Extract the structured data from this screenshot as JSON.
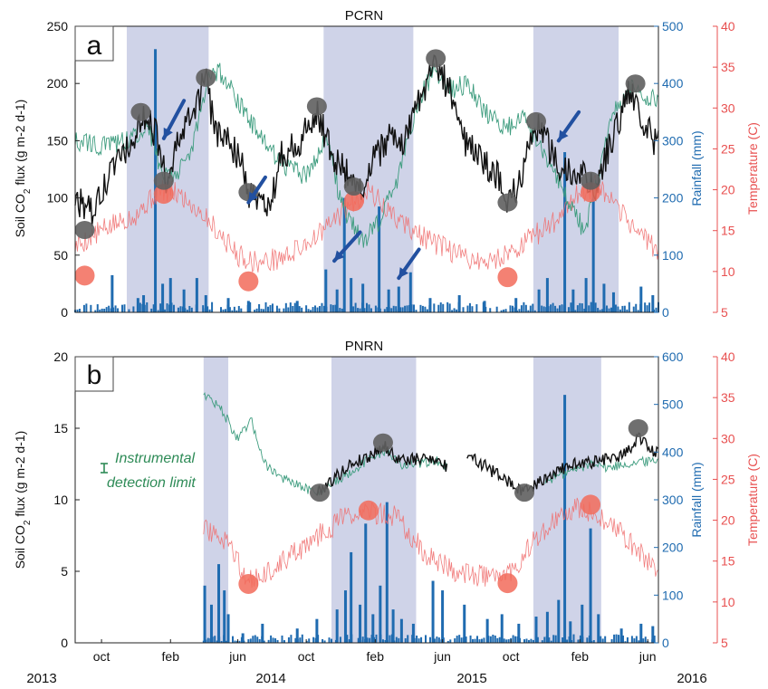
{
  "figure": {
    "year_labels": [
      "2013",
      "2014",
      "2015",
      "2016"
    ],
    "month_labels": [
      "oct",
      "feb",
      "jun",
      "oct",
      "feb",
      "jun",
      "oct",
      "feb",
      "jun"
    ]
  },
  "colors": {
    "flux": "#111111",
    "flux_markers": "#5f5f5f",
    "soil_moisture_line": "#3d9c7e",
    "rainfall": "#1f6bb0",
    "temperature": "#f07070",
    "temperature_markers": "#f26b5b",
    "wet_season_band": "#c7cbe4",
    "arrows": "#2250a0",
    "annotation_text": "#2e8b57"
  },
  "chart_data": [
    {
      "panel_letter": "a",
      "title": "PCRN",
      "type": "line",
      "ylabel": "Soil CO2 flux (g m-2 d-1)",
      "ylabel_main": "Soil CO",
      "ylabel_sub": "2",
      "ylabel_rest": " flux (g m-2 d-1)",
      "y2label": "Rainfall (mm)",
      "y3label": "Temperature (C)",
      "ylim": [
        0,
        250
      ],
      "y2lim": [
        0,
        500
      ],
      "y3lim": [
        5,
        40
      ],
      "yticks": [
        0,
        50,
        100,
        150,
        200,
        250
      ],
      "y2ticks": [
        0,
        100,
        200,
        300,
        400,
        500
      ],
      "y3ticks": [
        5,
        10,
        15,
        20,
        25,
        30,
        35,
        40
      ],
      "x_start": "2013-08-15",
      "x_end": "2016-06-20",
      "wet_season_bands": [
        [
          "2013-11-15",
          "2014-04-10"
        ],
        [
          "2014-11-01",
          "2015-04-10"
        ],
        [
          "2015-11-10",
          "2016-04-10"
        ]
      ],
      "flux_anchors": [
        [
          "2013-08-15",
          100
        ],
        [
          "2013-09-15",
          85
        ],
        [
          "2013-10-20",
          125
        ],
        [
          "2013-12-10",
          160
        ],
        [
          "2013-12-20",
          175
        ],
        [
          "2014-01-10",
          150
        ],
        [
          "2014-01-25",
          115
        ],
        [
          "2014-02-20",
          155
        ],
        [
          "2014-03-10",
          170
        ],
        [
          "2014-04-05",
          205
        ],
        [
          "2014-04-20",
          160
        ],
        [
          "2014-05-20",
          145
        ],
        [
          "2014-06-10",
          130
        ],
        [
          "2014-06-20",
          105
        ],
        [
          "2014-07-10",
          95
        ],
        [
          "2014-08-01",
          100
        ],
        [
          "2014-08-15",
          135
        ],
        [
          "2014-09-20",
          150
        ],
        [
          "2014-10-20",
          175
        ],
        [
          "2014-11-15",
          140
        ],
        [
          "2014-12-20",
          115
        ],
        [
          "2015-01-10",
          110
        ],
        [
          "2015-02-01",
          135
        ],
        [
          "2015-03-01",
          155
        ],
        [
          "2015-03-20",
          145
        ],
        [
          "2015-04-20",
          185
        ],
        [
          "2015-05-15",
          215
        ],
        [
          "2015-06-10",
          200
        ],
        [
          "2015-07-10",
          150
        ],
        [
          "2015-08-10",
          130
        ],
        [
          "2015-09-01",
          125
        ],
        [
          "2015-09-25",
          100
        ],
        [
          "2015-10-15",
          110
        ],
        [
          "2015-11-01",
          150
        ],
        [
          "2015-11-20",
          165
        ],
        [
          "2015-12-20",
          130
        ],
        [
          "2016-01-20",
          125
        ],
        [
          "2016-02-15",
          115
        ],
        [
          "2016-03-01",
          110
        ],
        [
          "2016-03-20",
          140
        ],
        [
          "2016-04-10",
          165
        ],
        [
          "2016-05-01",
          195
        ],
        [
          "2016-05-20",
          170
        ],
        [
          "2016-06-20",
          145
        ]
      ],
      "soil_moisture_anchors": [
        [
          "2013-08-15",
          150
        ],
        [
          "2013-10-01",
          145
        ],
        [
          "2013-11-20",
          150
        ],
        [
          "2013-12-20",
          165
        ],
        [
          "2014-01-15",
          125
        ],
        [
          "2014-02-15",
          120
        ],
        [
          "2014-03-15",
          150
        ],
        [
          "2014-04-10",
          205
        ],
        [
          "2014-05-01",
          210
        ],
        [
          "2014-06-01",
          185
        ],
        [
          "2014-07-01",
          160
        ],
        [
          "2014-08-01",
          140
        ],
        [
          "2014-09-01",
          125
        ],
        [
          "2014-10-01",
          120
        ],
        [
          "2014-11-10",
          155
        ],
        [
          "2014-12-01",
          95
        ],
        [
          "2015-01-10",
          60
        ],
        [
          "2015-02-10",
          80
        ],
        [
          "2015-03-15",
          120
        ],
        [
          "2015-04-15",
          180
        ],
        [
          "2015-05-15",
          210
        ],
        [
          "2015-06-15",
          195
        ],
        [
          "2015-07-15",
          200
        ],
        [
          "2015-08-15",
          175
        ],
        [
          "2015-09-20",
          160
        ],
        [
          "2015-10-20",
          170
        ],
        [
          "2015-11-20",
          150
        ],
        [
          "2015-12-20",
          120
        ],
        [
          "2016-01-20",
          90
        ],
        [
          "2016-02-10",
          70
        ],
        [
          "2016-03-01",
          110
        ],
        [
          "2016-04-01",
          175
        ],
        [
          "2016-05-01",
          195
        ],
        [
          "2016-06-20",
          185
        ]
      ],
      "temperature_anchors": [
        [
          "2013-08-15",
          13
        ],
        [
          "2013-10-01",
          15
        ],
        [
          "2013-12-01",
          17
        ],
        [
          "2014-01-15",
          20
        ],
        [
          "2014-02-15",
          19.5
        ],
        [
          "2014-04-01",
          17
        ],
        [
          "2014-06-01",
          12
        ],
        [
          "2014-07-10",
          11
        ],
        [
          "2014-09-01",
          12
        ],
        [
          "2014-11-01",
          15
        ],
        [
          "2014-12-15",
          18
        ],
        [
          "2015-01-20",
          20
        ],
        [
          "2015-03-01",
          17
        ],
        [
          "2015-05-01",
          14
        ],
        [
          "2015-07-01",
          12
        ],
        [
          "2015-08-20",
          11
        ],
        [
          "2015-10-15",
          13
        ],
        [
          "2015-12-15",
          16
        ],
        [
          "2016-01-20",
          19
        ],
        [
          "2016-03-01",
          20.5
        ],
        [
          "2016-04-15",
          17
        ],
        [
          "2016-06-20",
          12.5
        ]
      ],
      "rain_events": [
        [
          "2013-10-20",
          65
        ],
        [
          "2013-12-05",
          25
        ],
        [
          "2013-12-15",
          30
        ],
        [
          "2014-01-05",
          460
        ],
        [
          "2014-01-18",
          50
        ],
        [
          "2014-02-01",
          60
        ],
        [
          "2014-02-25",
          40
        ],
        [
          "2014-03-20",
          60
        ],
        [
          "2014-04-05",
          30
        ],
        [
          "2014-05-15",
          25
        ],
        [
          "2014-06-20",
          20
        ],
        [
          "2014-09-15",
          20
        ],
        [
          "2014-11-05",
          75
        ],
        [
          "2014-11-25",
          40
        ],
        [
          "2014-12-08",
          200
        ],
        [
          "2014-12-20",
          60
        ],
        [
          "2015-01-10",
          50
        ],
        [
          "2015-02-08",
          185
        ],
        [
          "2015-02-25",
          40
        ],
        [
          "2015-03-15",
          45
        ],
        [
          "2015-04-05",
          70
        ],
        [
          "2015-05-10",
          25
        ],
        [
          "2015-07-01",
          30
        ],
        [
          "2015-08-15",
          20
        ],
        [
          "2015-10-10",
          25
        ],
        [
          "2015-11-20",
          40
        ],
        [
          "2015-12-05",
          60
        ],
        [
          "2016-01-05",
          280
        ],
        [
          "2016-01-20",
          40
        ],
        [
          "2016-02-12",
          60
        ],
        [
          "2016-02-25",
          220
        ],
        [
          "2016-03-15",
          50
        ],
        [
          "2016-04-01",
          35
        ],
        [
          "2016-05-20",
          45
        ],
        [
          "2016-06-10",
          30
        ]
      ],
      "flux_markers": [
        [
          "2013-09-01",
          72
        ],
        [
          "2013-12-10",
          175
        ],
        [
          "2014-01-20",
          115
        ],
        [
          "2014-04-05",
          205
        ],
        [
          "2014-06-20",
          105
        ],
        [
          "2014-10-20",
          180
        ],
        [
          "2014-12-25",
          110
        ],
        [
          "2015-05-20",
          222
        ],
        [
          "2015-09-25",
          96
        ],
        [
          "2015-11-15",
          167
        ],
        [
          "2016-02-20",
          115
        ],
        [
          "2016-05-10",
          200
        ]
      ],
      "temperature_markers": [
        [
          "2013-09-01",
          9.5
        ],
        [
          "2014-01-20",
          19.5
        ],
        [
          "2014-06-20",
          8.8
        ],
        [
          "2014-12-25",
          18.6
        ],
        [
          "2015-09-25",
          9.3
        ],
        [
          "2016-02-20",
          19.7
        ]
      ],
      "arrows": [
        [
          [
            "2014-01-20",
            152
          ],
          [
            "2014-02-25",
            185
          ]
        ],
        [
          [
            "2014-06-20",
            96
          ],
          [
            "2014-07-20",
            118
          ]
        ],
        [
          [
            "2014-11-20",
            45
          ],
          [
            "2015-01-05",
            70
          ]
        ],
        [
          [
            "2015-03-15",
            30
          ],
          [
            "2015-04-20",
            55
          ]
        ],
        [
          [
            "2015-12-25",
            150
          ],
          [
            "2016-01-30",
            175
          ]
        ]
      ]
    },
    {
      "panel_letter": "b",
      "title": "PNRN",
      "type": "line",
      "ylabel": "Soil CO2 flux (g m-2 d-1)",
      "ylabel_main": "Soil CO",
      "ylabel_sub": "2",
      "ylabel_rest": " flux (g m-2 d-1)",
      "y2label": "Rainfall (mm)",
      "y3label": "Temperature (C)",
      "ylim": [
        0,
        20
      ],
      "y2lim": [
        0,
        600
      ],
      "y3lim": [
        5,
        40
      ],
      "yticks": [
        0,
        5,
        10,
        15,
        20
      ],
      "y2ticks": [
        0,
        100,
        200,
        300,
        400,
        500,
        600
      ],
      "y3ticks": [
        5,
        10,
        15,
        20,
        25,
        30,
        35,
        40
      ],
      "x_start": "2013-08-15",
      "x_end": "2016-06-20",
      "wet_season_bands": [
        [
          "2014-04-01",
          "2014-05-15"
        ],
        [
          "2014-11-15",
          "2015-04-15"
        ],
        [
          "2015-11-10",
          "2016-03-10"
        ]
      ],
      "flux_anchors": [
        [
          "2014-10-20",
          10.5
        ],
        [
          "2014-11-20",
          11.5
        ],
        [
          "2014-12-20",
          12.5
        ],
        [
          "2015-01-20",
          13
        ],
        [
          "2015-02-15",
          13.8
        ],
        [
          "2015-03-15",
          12.8
        ],
        [
          "2015-04-15",
          12.8
        ],
        [
          "2015-05-15",
          13
        ],
        [
          "2015-06-10",
          12.2
        ]
      ],
      "flux_anchors_2": [
        [
          "2015-07-15",
          13.1
        ],
        [
          "2015-08-15",
          12.4
        ],
        [
          "2015-09-15",
          11.5
        ],
        [
          "2015-10-25",
          10.5
        ],
        [
          "2015-12-01",
          11.5
        ],
        [
          "2016-01-15",
          12.5
        ],
        [
          "2016-02-15",
          12.6
        ],
        [
          "2016-03-15",
          12.8
        ],
        [
          "2016-04-15",
          13
        ],
        [
          "2016-05-15",
          14.3
        ],
        [
          "2016-06-20",
          13.2
        ]
      ],
      "soil_moisture_anchors": [
        [
          "2014-04-01",
          17.5
        ],
        [
          "2014-05-05",
          16.2
        ],
        [
          "2014-06-01",
          14.2
        ],
        [
          "2014-06-25",
          15.5
        ],
        [
          "2014-07-20",
          12.5
        ],
        [
          "2014-08-20",
          11.5
        ],
        [
          "2014-09-25",
          10.8
        ],
        [
          "2014-10-25",
          10.6
        ],
        [
          "2014-12-01",
          11.5
        ],
        [
          "2015-01-20",
          12.8
        ],
        [
          "2015-02-20",
          13.5
        ],
        [
          "2015-03-20",
          12.4
        ],
        [
          "2015-04-20",
          12.5
        ],
        [
          "2015-05-20",
          12.8
        ],
        [
          "2015-06-10",
          12.2
        ]
      ],
      "soil_moisture_anchors_2": [
        [
          "2015-12-01",
          11.3
        ],
        [
          "2016-01-01",
          11.8
        ],
        [
          "2016-02-01",
          12.2
        ],
        [
          "2016-03-01",
          12.7
        ],
        [
          "2016-03-20",
          12.2
        ],
        [
          "2016-04-20",
          12.5
        ],
        [
          "2016-06-20",
          12.8
        ]
      ],
      "temperature_anchors": [
        [
          "2014-04-01",
          19
        ],
        [
          "2014-05-15",
          17
        ],
        [
          "2014-06-20",
          12.5
        ],
        [
          "2014-08-01",
          14
        ],
        [
          "2014-10-01",
          17
        ],
        [
          "2014-12-01",
          20
        ],
        [
          "2015-01-25",
          21
        ],
        [
          "2015-03-10",
          20.5
        ],
        [
          "2015-05-01",
          16
        ],
        [
          "2015-07-01",
          13.5
        ],
        [
          "2015-09-25",
          13
        ],
        [
          "2015-11-15",
          18
        ],
        [
          "2016-01-10",
          21.5
        ],
        [
          "2016-03-01",
          21
        ],
        [
          "2016-04-20",
          18
        ],
        [
          "2016-06-20",
          14
        ]
      ],
      "rain_events": [
        [
          "2014-04-03",
          120
        ],
        [
          "2014-04-15",
          80
        ],
        [
          "2014-04-28",
          165
        ],
        [
          "2014-05-08",
          110
        ],
        [
          "2014-05-15",
          60
        ],
        [
          "2014-06-10",
          20
        ],
        [
          "2014-07-15",
          40
        ],
        [
          "2014-09-15",
          30
        ],
        [
          "2014-10-20",
          50
        ],
        [
          "2014-11-25",
          70
        ],
        [
          "2014-12-10",
          110
        ],
        [
          "2014-12-20",
          190
        ],
        [
          "2015-01-05",
          80
        ],
        [
          "2015-01-15",
          250
        ],
        [
          "2015-01-28",
          60
        ],
        [
          "2015-02-10",
          120
        ],
        [
          "2015-02-22",
          295
        ],
        [
          "2015-03-05",
          70
        ],
        [
          "2015-03-20",
          50
        ],
        [
          "2015-04-10",
          40
        ],
        [
          "2015-05-15",
          130
        ],
        [
          "2015-06-01",
          110
        ],
        [
          "2015-07-10",
          80
        ],
        [
          "2015-08-20",
          50
        ],
        [
          "2015-09-15",
          60
        ],
        [
          "2015-10-15",
          40
        ],
        [
          "2015-11-15",
          55
        ],
        [
          "2015-12-05",
          65
        ],
        [
          "2015-12-25",
          90
        ],
        [
          "2016-01-05",
          520
        ],
        [
          "2016-01-15",
          45
        ],
        [
          "2016-02-05",
          80
        ],
        [
          "2016-02-20",
          240
        ],
        [
          "2016-03-05",
          60
        ],
        [
          "2016-04-15",
          30
        ],
        [
          "2016-05-20",
          40
        ],
        [
          "2016-06-10",
          35
        ]
      ],
      "flux_markers": [
        [
          "2014-10-25",
          10.5
        ],
        [
          "2015-02-15",
          14
        ],
        [
          "2015-10-25",
          10.5
        ],
        [
          "2016-05-15",
          15
        ]
      ],
      "temperature_markers": [
        [
          "2014-06-20",
          12.2
        ],
        [
          "2015-01-20",
          21.2
        ],
        [
          "2015-09-25",
          12.3
        ],
        [
          "2016-02-20",
          21.9
        ]
      ],
      "annotation": {
        "line1": "Instrumental",
        "line2": "detection limit"
      }
    }
  ]
}
